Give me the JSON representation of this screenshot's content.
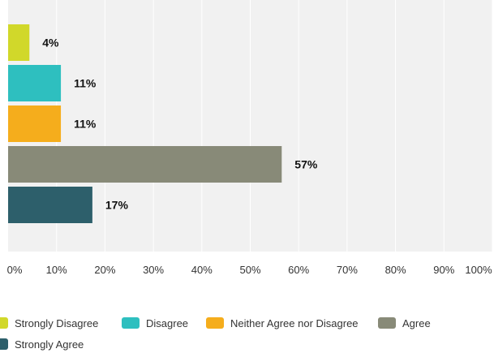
{
  "chart_data": {
    "type": "bar",
    "orientation": "horizontal",
    "categories": [
      "Strongly Disagree",
      "Disagree",
      "Neither Agree nor Disagree",
      "Agree",
      "Strongly Agree"
    ],
    "values": [
      4,
      11,
      11,
      57,
      17
    ],
    "value_labels": [
      "4%",
      "11%",
      "11%",
      "57%",
      "17%"
    ],
    "bar_values": [
      4.4,
      10.9,
      10.9,
      56.5,
      17.4
    ],
    "colors": [
      "#d1d82a",
      "#2ebfbf",
      "#f5ad1c",
      "#888a78",
      "#2d5f6b"
    ],
    "xlim": [
      0,
      100
    ],
    "xticks": [
      "0%",
      "10%",
      "20%",
      "30%",
      "40%",
      "50%",
      "60%",
      "70%",
      "80%",
      "90%",
      "100%"
    ],
    "grid": true,
    "legend_position": "bottom",
    "title": "",
    "xlabel": "",
    "ylabel": ""
  }
}
